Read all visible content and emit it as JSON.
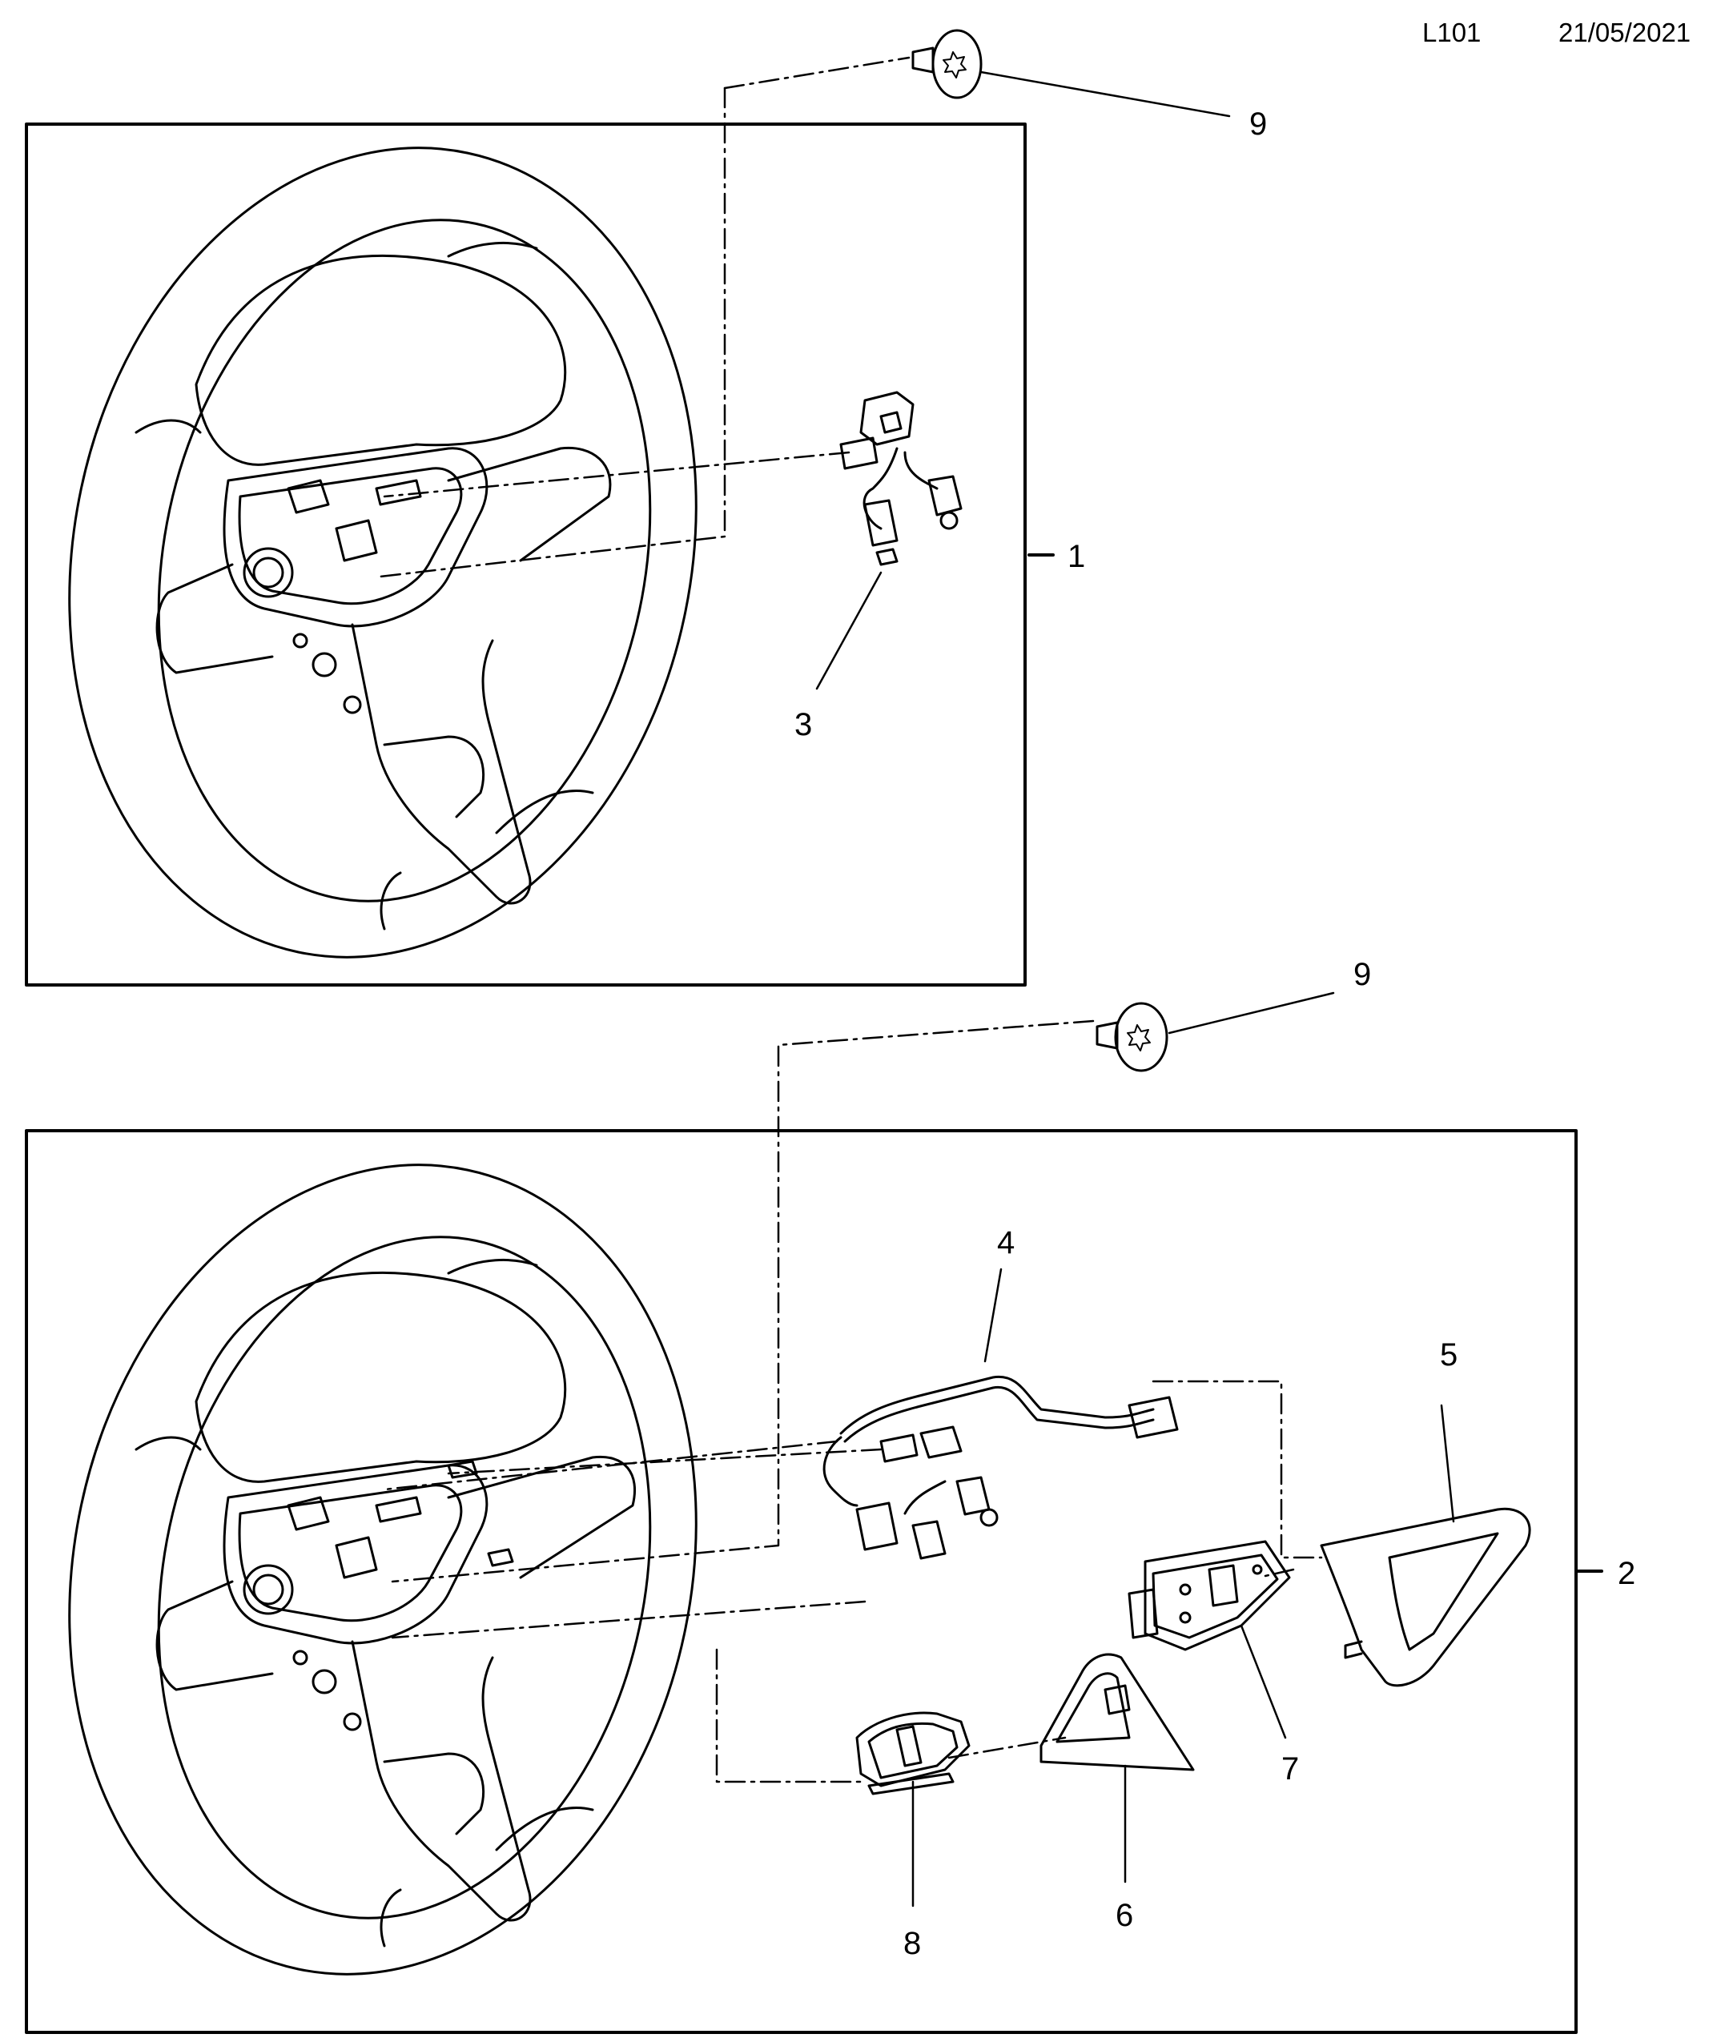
{
  "header": {
    "code": "L101",
    "date": "21/05/2021"
  },
  "callouts": {
    "c1": "1",
    "c2": "2",
    "c3": "3",
    "c4": "4",
    "c5": "5",
    "c6": "6",
    "c7": "7",
    "c8": "8",
    "c9_top": "9",
    "c9_bottom": "9"
  },
  "colors": {
    "line": "#000000",
    "background": "#ffffff"
  }
}
